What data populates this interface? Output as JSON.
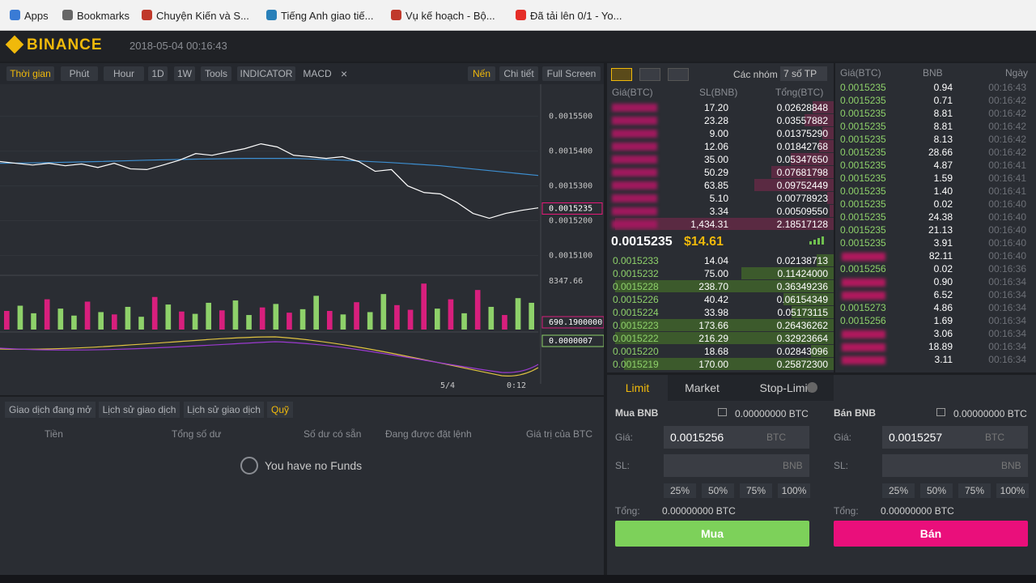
{
  "bookmarks": [
    "Apps",
    "Bookmarks",
    "Chuyện Kiến và S...",
    "Tiếng Anh giao tiế...",
    "Vụ kế hoạch - Bộ...",
    "Đã tải lên 0/1 - Yo..."
  ],
  "header": {
    "logo": "BINANCE",
    "datetime": "2018-05-04 00:16:43"
  },
  "chart_toolbar": {
    "left": [
      "Thời gian",
      "Phút",
      "Hour",
      "1D",
      "1W",
      "Tools",
      "INDICATOR",
      "MACD"
    ],
    "close": "×",
    "right": [
      "Nến",
      "Chi tiết",
      "Full Screen"
    ]
  },
  "price_chart": {
    "ylim": [
      0.001505,
      0.001559
    ],
    "yticks": [
      {
        "value": 0.00155,
        "label": "0.0015500"
      },
      {
        "value": 0.00154,
        "label": "0.0015400"
      },
      {
        "value": 0.00153,
        "label": "0.0015300"
      },
      {
        "value": 0.00152,
        "label": "0.0015200"
      },
      {
        "value": 0.00151,
        "label": "0.0015100"
      }
    ],
    "price": [
      0.001537,
      0.0015365,
      0.001536,
      0.0015365,
      0.0015358,
      0.0015363,
      0.0015353,
      0.0015365,
      0.0015349,
      0.0015347,
      0.001536,
      0.0015374,
      0.0015393,
      0.0015388,
      0.0015398,
      0.0015407,
      0.0015421,
      0.0015412,
      0.0015388,
      0.0015384,
      0.0015379,
      0.0015384,
      0.001537,
      0.0015342,
      0.0015347,
      0.00153,
      0.0015281,
      0.0015277,
      0.0015253,
      0.0015221,
      0.0015207,
      0.0015221,
      0.001523,
      0.0015237
    ],
    "ma": [
      0.0015365,
      0.0015367,
      0.001537,
      0.0015374,
      0.0015377,
      0.0015379,
      0.0015379,
      0.0015374,
      0.0015367,
      0.0015358,
      0.0015344,
      0.001533
    ],
    "price_color": "#ffffff",
    "ma_color": "#3d8fd1",
    "last_price": {
      "value": 0.0015235,
      "label": "0.0015235"
    },
    "volume_top_label": "8347.66",
    "volume": [
      3200,
      4100,
      2800,
      5200,
      3600,
      2400,
      4800,
      3000,
      2600,
      3900,
      2200,
      5600,
      4300,
      3100,
      2700,
      4600,
      3300,
      5000,
      2500,
      3800,
      4400,
      2900,
      3500,
      5800,
      3200,
      2600,
      4700,
      3000,
      6100,
      4200,
      3400,
      7900,
      3600,
      5200,
      2800,
      6800,
      3900,
      2500,
      5400,
      4600
    ],
    "volume_up": [
      false,
      true,
      true,
      false,
      true,
      true,
      false,
      true,
      false,
      true,
      true,
      false,
      true,
      false,
      true,
      true,
      false,
      true,
      true,
      false,
      true,
      false,
      true,
      true,
      false,
      true,
      false,
      true,
      true,
      false,
      false,
      false,
      true,
      false,
      true,
      false,
      true,
      false,
      true,
      true
    ],
    "volume_label": "690.1900000",
    "macd_label": "0.0000007",
    "xticks": [
      "5/4",
      "0:12"
    ]
  },
  "funds_panel": {
    "tabs": [
      "Giao dịch đang mở",
      "Lịch sử giao dịch",
      "Lịch sử giao dịch",
      "Quỹ"
    ],
    "active_tab": 3,
    "columns": [
      "Tiền",
      "Tổng số dư",
      "Số dư có sẵn",
      "Đang được đặt lệnh",
      "Giá trị của BTC"
    ],
    "empty": "You have no Funds"
  },
  "order_book": {
    "group_label": "Các nhóm",
    "decimals": "7 số TP",
    "columns": [
      "Giá(BTC)",
      "SL(BNB)",
      "Tổng(BTC)"
    ],
    "asks": [
      {
        "amount": "17.20",
        "total": "0.02628848"
      },
      {
        "amount": "23.28",
        "total": "0.03557882"
      },
      {
        "amount": "9.00",
        "total": "0.01375290"
      },
      {
        "amount": "12.06",
        "total": "0.01842768"
      },
      {
        "amount": "35.00",
        "total": "0.05347650"
      },
      {
        "amount": "50.29",
        "total": "0.07681798"
      },
      {
        "amount": "63.85",
        "total": "0.09752449"
      },
      {
        "amount": "5.10",
        "total": "0.00778923"
      },
      {
        "amount": "3.34",
        "total": "0.00509550"
      },
      {
        "amount": "1,434.31",
        "total": "2.18517128"
      }
    ],
    "last": "0.0015235",
    "last_usd": "$14.61",
    "bids": [
      {
        "price": "0.0015233",
        "amount": "14.04",
        "total": "0.02138713"
      },
      {
        "price": "0.0015232",
        "amount": "75.00",
        "total": "0.11424000"
      },
      {
        "price": "0.0015228",
        "amount": "238.70",
        "total": "0.36349236"
      },
      {
        "price": "0.0015226",
        "amount": "40.42",
        "total": "0.06154349"
      },
      {
        "price": "0.0015224",
        "amount": "33.98",
        "total": "0.05173115"
      },
      {
        "price": "0.0015223",
        "amount": "173.66",
        "total": "0.26436262"
      },
      {
        "price": "0.0015222",
        "amount": "216.29",
        "total": "0.32923664"
      },
      {
        "price": "0.0015220",
        "amount": "18.68",
        "total": "0.02843096"
      },
      {
        "price": "0.0015219",
        "amount": "170.00",
        "total": "0.25872300"
      }
    ]
  },
  "trades": {
    "columns": [
      "Giá(BTC)",
      "BNB",
      "Ngày"
    ],
    "rows": [
      {
        "price": "0.0015235",
        "amount": "0.94",
        "time": "00:16:43",
        "side": "buy"
      },
      {
        "price": "0.0015235",
        "amount": "0.71",
        "time": "00:16:42",
        "side": "buy"
      },
      {
        "price": "0.0015235",
        "amount": "8.81",
        "time": "00:16:42",
        "side": "buy"
      },
      {
        "price": "0.0015235",
        "amount": "8.81",
        "time": "00:16:42",
        "side": "buy"
      },
      {
        "price": "0.0015235",
        "amount": "8.13",
        "time": "00:16:42",
        "side": "buy"
      },
      {
        "price": "0.0015235",
        "amount": "28.66",
        "time": "00:16:42",
        "side": "buy"
      },
      {
        "price": "0.0015235",
        "amount": "4.87",
        "time": "00:16:41",
        "side": "buy"
      },
      {
        "price": "0.0015235",
        "amount": "1.59",
        "time": "00:16:41",
        "side": "buy"
      },
      {
        "price": "0.0015235",
        "amount": "1.40",
        "time": "00:16:41",
        "side": "buy"
      },
      {
        "price": "0.0015235",
        "amount": "0.02",
        "time": "00:16:40",
        "side": "buy"
      },
      {
        "price": "0.0015235",
        "amount": "24.38",
        "time": "00:16:40",
        "side": "buy"
      },
      {
        "price": "0.0015235",
        "amount": "21.13",
        "time": "00:16:40",
        "side": "buy"
      },
      {
        "price": "0.0015235",
        "amount": "3.91",
        "time": "00:16:40",
        "side": "buy"
      },
      {
        "amount": "82.11",
        "time": "00:16:40",
        "side": "sell"
      },
      {
        "price": "0.0015256",
        "amount": "0.02",
        "time": "00:16:36",
        "side": "buy"
      },
      {
        "amount": "0.90",
        "time": "00:16:34",
        "side": "sell"
      },
      {
        "amount": "6.52",
        "time": "00:16:34",
        "side": "sell"
      },
      {
        "price": "0.0015273",
        "amount": "4.86",
        "time": "00:16:34",
        "side": "buy"
      },
      {
        "price": "0.0015256",
        "amount": "1.69",
        "time": "00:16:34",
        "side": "buy"
      },
      {
        "amount": "3.06",
        "time": "00:16:34",
        "side": "sell"
      },
      {
        "amount": "18.89",
        "time": "00:16:34",
        "side": "sell"
      },
      {
        "amount": "3.11",
        "time": "00:16:34",
        "side": "sell"
      }
    ]
  },
  "order_form": {
    "tabs": [
      "Limit",
      "Market",
      "Stop-Limit"
    ],
    "buy": {
      "title": "Mua BNB",
      "balance": "0.00000000 BTC",
      "price_label": "Giá:",
      "price": "0.0015256",
      "price_unit": "BTC",
      "amount_label": "SL:",
      "amount_unit": "BNB",
      "percents": [
        "25%",
        "50%",
        "75%",
        "100%"
      ],
      "total_label": "Tổng:",
      "total": "0.00000000 BTC",
      "button": "Mua"
    },
    "sell": {
      "title": "Bán BNB",
      "balance": "0.00000000 BTC",
      "price_label": "Giá:",
      "price": "0.0015257",
      "price_unit": "BTC",
      "amount_label": "SL:",
      "amount_unit": "BNB",
      "percents": [
        "25%",
        "50%",
        "75%",
        "100%"
      ],
      "total_label": "Tổng:",
      "total": "0.00000000 BTC",
      "button": "Bán"
    }
  }
}
